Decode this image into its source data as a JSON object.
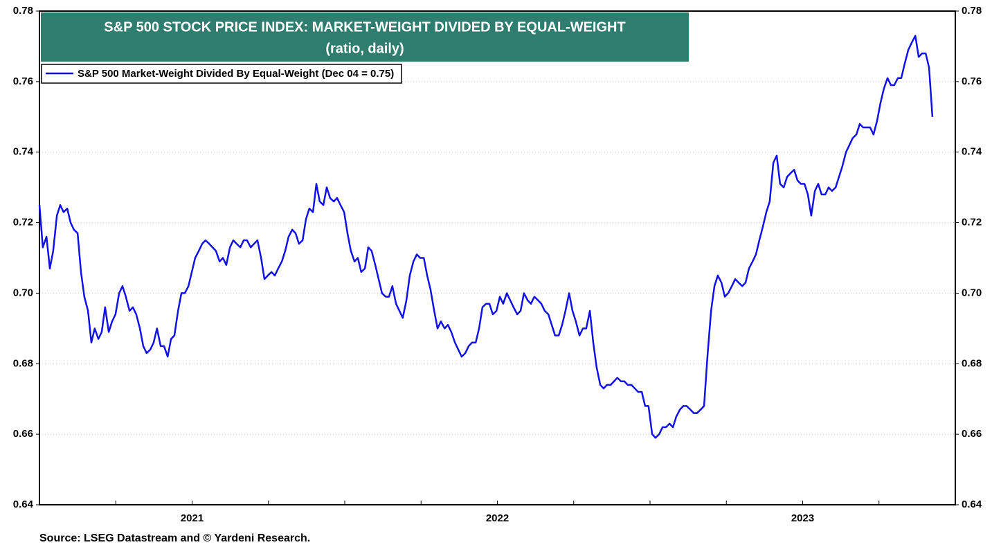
{
  "chart_data": {
    "type": "line",
    "title": "S&P 500 STOCK PRICE INDEX: MARKET-WEIGHT DIVIDED BY EQUAL-WEIGHT",
    "subtitle": "(ratio, daily)",
    "source": "Source: LSEG Datastream and © Yardeni Research.",
    "legend": "top-left",
    "grid": true,
    "xlim": [
      2021,
      2024
    ],
    "xticks": [
      {
        "value": 2021.5,
        "label": "2021"
      },
      {
        "value": 2022.5,
        "label": "2022"
      },
      {
        "value": 2023.5,
        "label": "2023"
      }
    ],
    "xminorticks": [
      2021.25,
      2021.5,
      2021.75,
      2022,
      2022.25,
      2022.5,
      2022.75,
      2023,
      2023.25,
      2023.5,
      2023.75
    ],
    "ylim": [
      0.64,
      0.78
    ],
    "yticks": [
      0.64,
      0.66,
      0.68,
      {
        "value": 0.7,
        "label": "0.70"
      },
      0.72,
      0.74,
      0.76,
      0.78
    ],
    "x": [
      2021.0,
      2021.011,
      2021.023,
      2021.034,
      2021.045,
      2021.057,
      2021.068,
      2021.079,
      2021.091,
      2021.102,
      2021.113,
      2021.125,
      2021.136,
      2021.147,
      2021.159,
      2021.17,
      2021.181,
      2021.193,
      2021.204,
      2021.215,
      2021.227,
      2021.238,
      2021.249,
      2021.261,
      2021.272,
      2021.283,
      2021.295,
      2021.306,
      2021.317,
      2021.329,
      2021.34,
      2021.351,
      2021.363,
      2021.374,
      2021.385,
      2021.397,
      2021.408,
      2021.42,
      2021.431,
      2021.442,
      2021.454,
      2021.465,
      2021.476,
      2021.488,
      2021.499,
      2021.51,
      2021.522,
      2021.533,
      2021.544,
      2021.556,
      2021.567,
      2021.578,
      2021.59,
      2021.601,
      2021.612,
      2021.624,
      2021.635,
      2021.646,
      2021.658,
      2021.669,
      2021.68,
      2021.692,
      2021.703,
      2021.714,
      2021.726,
      2021.737,
      2021.748,
      2021.76,
      2021.771,
      2021.782,
      2021.794,
      2021.805,
      2021.816,
      2021.828,
      2021.839,
      2021.85,
      2021.862,
      2021.873,
      2021.884,
      2021.896,
      2021.907,
      2021.918,
      2021.93,
      2021.941,
      2021.952,
      2021.964,
      2021.975,
      2021.986,
      2021.998,
      2022.009,
      2022.02,
      2022.032,
      2022.043,
      2022.054,
      2022.066,
      2022.077,
      2022.088,
      2022.1,
      2022.111,
      2022.122,
      2022.134,
      2022.145,
      2022.156,
      2022.168,
      2022.179,
      2022.19,
      2022.202,
      2022.213,
      2022.225,
      2022.236,
      2022.247,
      2022.259,
      2022.27,
      2022.281,
      2022.293,
      2022.304,
      2022.315,
      2022.327,
      2022.338,
      2022.349,
      2022.361,
      2022.372,
      2022.383,
      2022.395,
      2022.406,
      2022.417,
      2022.429,
      2022.44,
      2022.451,
      2022.463,
      2022.474,
      2022.485,
      2022.497,
      2022.508,
      2022.519,
      2022.531,
      2022.542,
      2022.553,
      2022.565,
      2022.576,
      2022.587,
      2022.599,
      2022.61,
      2022.621,
      2022.633,
      2022.644,
      2022.655,
      2022.667,
      2022.678,
      2022.689,
      2022.701,
      2022.712,
      2022.723,
      2022.735,
      2022.746,
      2022.757,
      2022.769,
      2022.78,
      2022.791,
      2022.803,
      2022.814,
      2022.825,
      2022.837,
      2022.848,
      2022.859,
      2022.871,
      2022.882,
      2022.893,
      2022.905,
      2022.916,
      2022.927,
      2022.939,
      2022.95,
      2022.961,
      2022.973,
      2022.984,
      2022.995,
      2023.007,
      2023.018,
      2023.03,
      2023.041,
      2023.052,
      2023.064,
      2023.075,
      2023.086,
      2023.098,
      2023.109,
      2023.12,
      2023.132,
      2023.143,
      2023.154,
      2023.166,
      2023.177,
      2023.188,
      2023.2,
      2023.211,
      2023.222,
      2023.234,
      2023.245,
      2023.256,
      2023.268,
      2023.279,
      2023.29,
      2023.302,
      2023.313,
      2023.324,
      2023.336,
      2023.347,
      2023.358,
      2023.37,
      2023.381,
      2023.392,
      2023.404,
      2023.415,
      2023.426,
      2023.438,
      2023.449,
      2023.46,
      2023.472,
      2023.483,
      2023.494,
      2023.506,
      2023.517,
      2023.528,
      2023.54,
      2023.551,
      2023.562,
      2023.574,
      2023.585,
      2023.596,
      2023.608,
      2023.619,
      2023.63,
      2023.642,
      2023.653,
      2023.664,
      2023.676,
      2023.687,
      2023.698,
      2023.71,
      2023.721,
      2023.732,
      2023.744,
      2023.755,
      2023.766,
      2023.778,
      2023.789,
      2023.8,
      2023.812,
      2023.823,
      2023.834,
      2023.846,
      2023.857,
      2023.869,
      2023.88,
      2023.891,
      2023.903,
      2023.914,
      2023.925
    ],
    "series": [
      {
        "name": "S&P 500 Market-Weight Divided By Equal-Weight (Dec 04 = 0.75)",
        "color": "#1010e8",
        "values": [
          0.725,
          0.713,
          0.716,
          0.707,
          0.712,
          0.722,
          0.725,
          0.723,
          0.724,
          0.72,
          0.718,
          0.717,
          0.706,
          0.699,
          0.695,
          0.686,
          0.69,
          0.687,
          0.689,
          0.696,
          0.689,
          0.692,
          0.694,
          0.7,
          0.702,
          0.699,
          0.695,
          0.696,
          0.694,
          0.69,
          0.685,
          0.683,
          0.684,
          0.686,
          0.69,
          0.685,
          0.685,
          0.682,
          0.687,
          0.688,
          0.695,
          0.7,
          0.7,
          0.702,
          0.706,
          0.71,
          0.712,
          0.714,
          0.715,
          0.714,
          0.713,
          0.712,
          0.709,
          0.71,
          0.708,
          0.713,
          0.715,
          0.714,
          0.713,
          0.715,
          0.715,
          0.713,
          0.714,
          0.715,
          0.71,
          0.704,
          0.705,
          0.706,
          0.705,
          0.707,
          0.709,
          0.712,
          0.716,
          0.718,
          0.717,
          0.714,
          0.715,
          0.721,
          0.724,
          0.723,
          0.731,
          0.726,
          0.725,
          0.73,
          0.727,
          0.726,
          0.727,
          0.725,
          0.723,
          0.717,
          0.712,
          0.709,
          0.71,
          0.706,
          0.707,
          0.713,
          0.712,
          0.708,
          0.704,
          0.7,
          0.699,
          0.699,
          0.702,
          0.697,
          0.695,
          0.693,
          0.698,
          0.705,
          0.709,
          0.711,
          0.71,
          0.71,
          0.705,
          0.701,
          0.695,
          0.69,
          0.692,
          0.69,
          0.691,
          0.689,
          0.686,
          0.684,
          0.682,
          0.683,
          0.685,
          0.686,
          0.686,
          0.69,
          0.696,
          0.697,
          0.697,
          0.694,
          0.695,
          0.699,
          0.697,
          0.7,
          0.698,
          0.696,
          0.694,
          0.695,
          0.7,
          0.698,
          0.697,
          0.699,
          0.698,
          0.697,
          0.695,
          0.694,
          0.691,
          0.688,
          0.688,
          0.691,
          0.695,
          0.7,
          0.695,
          0.692,
          0.688,
          0.69,
          0.69,
          0.695,
          0.686,
          0.679,
          0.674,
          0.673,
          0.674,
          0.674,
          0.675,
          0.676,
          0.675,
          0.675,
          0.674,
          0.674,
          0.673,
          0.672,
          0.672,
          0.668,
          0.668,
          0.66,
          0.659,
          0.66,
          0.662,
          0.662,
          0.663,
          0.662,
          0.665,
          0.667,
          0.668,
          0.668,
          0.667,
          0.666,
          0.666,
          0.667,
          0.668,
          0.682,
          0.695,
          0.702,
          0.705,
          0.703,
          0.699,
          0.7,
          0.702,
          0.704,
          0.703,
          0.702,
          0.703,
          0.707,
          0.709,
          0.711,
          0.715,
          0.719,
          0.723,
          0.726,
          0.737,
          0.739,
          0.731,
          0.73,
          0.733,
          0.734,
          0.735,
          0.732,
          0.731,
          0.731,
          0.728,
          0.722,
          0.729,
          0.731,
          0.728,
          0.728,
          0.73,
          0.729,
          0.73,
          0.733,
          0.736,
          0.74,
          0.742,
          0.744,
          0.745,
          0.748,
          0.747,
          0.747,
          0.747,
          0.745,
          0.749,
          0.754,
          0.758,
          0.761,
          0.759,
          0.759,
          0.761,
          0.761,
          0.765,
          0.769,
          0.771,
          0.773,
          0.767,
          0.768,
          0.768,
          0.764,
          0.75
        ]
      }
    ]
  }
}
